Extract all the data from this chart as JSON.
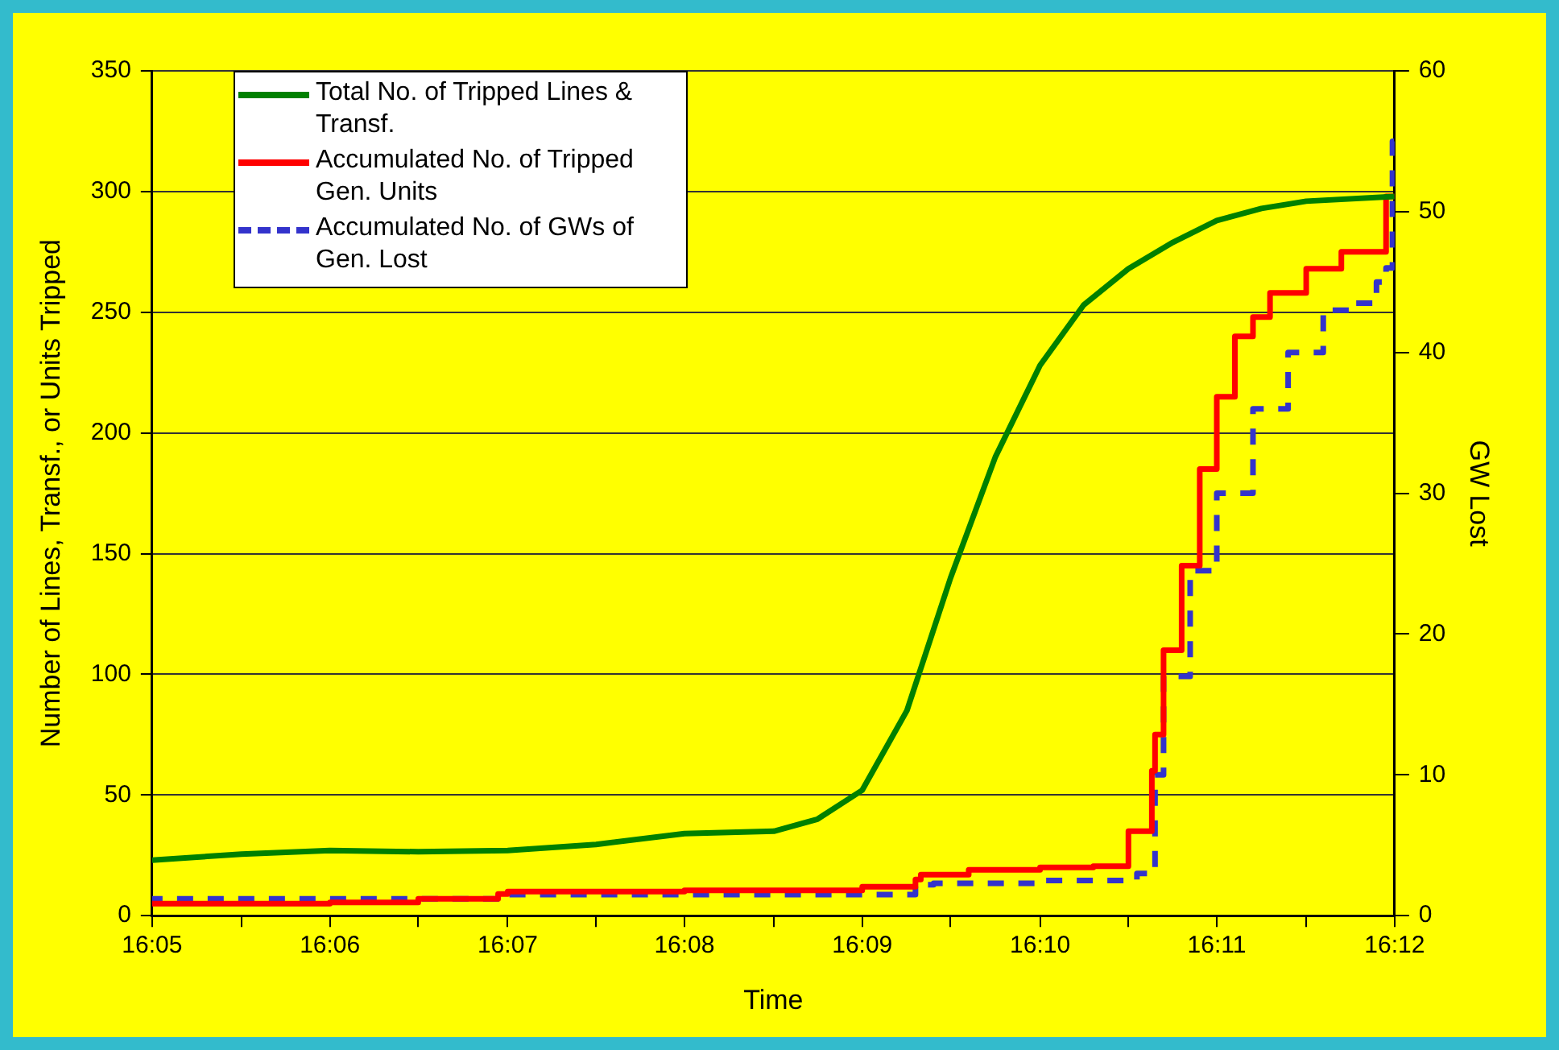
{
  "chart_data": {
    "type": "line",
    "xlabel": "Time",
    "ylabel": "Number of Lines, Transf., or Units Tripped",
    "y2label": "GW Lost",
    "xlim": [
      16.0833,
      16.2
    ],
    "xticks": [
      {
        "value": 16.0833,
        "label": "16:05"
      },
      {
        "value": 16.0917,
        "label": null
      },
      {
        "value": 16.1,
        "label": "16:06"
      },
      {
        "value": 16.1083,
        "label": null
      },
      {
        "value": 16.1167,
        "label": "16:07"
      },
      {
        "value": 16.125,
        "label": null
      },
      {
        "value": 16.1333,
        "label": "16:08"
      },
      {
        "value": 16.1417,
        "label": null
      },
      {
        "value": 16.15,
        "label": "16:09"
      },
      {
        "value": 16.1583,
        "label": null
      },
      {
        "value": 16.1667,
        "label": "16:10"
      },
      {
        "value": 16.175,
        "label": null
      },
      {
        "value": 16.1833,
        "label": "16:11"
      },
      {
        "value": 16.1917,
        "label": null
      },
      {
        "value": 16.2,
        "label": "16:12"
      }
    ],
    "ylim": [
      0,
      350
    ],
    "yticks": [
      0,
      50,
      100,
      150,
      200,
      250,
      300,
      350
    ],
    "y2lim": [
      0,
      60
    ],
    "y2ticks": [
      0,
      10,
      20,
      30,
      40,
      50,
      60
    ],
    "grid": "y",
    "legend": "top left",
    "marker": "none",
    "series": [
      {
        "name": "Total No. of Tripped Lines & Transf.",
        "color": "#008000",
        "type": "line",
        "line_style": "solid",
        "x": [
          16.0833,
          16.0917,
          16.1,
          16.1083,
          16.1167,
          16.125,
          16.1333,
          16.1417,
          16.1458,
          16.15,
          16.1542,
          16.1583,
          16.1625,
          16.1667,
          16.1708,
          16.175,
          16.1792,
          16.1833,
          16.1875,
          16.1917,
          16.2
        ],
        "values": [
          23,
          25.5,
          27,
          26.5,
          27,
          29.5,
          34,
          35,
          40,
          52,
          85,
          140,
          190,
          228,
          253,
          268,
          279,
          288,
          293,
          296,
          298
        ]
      },
      {
        "name": "Accumulated No. of Tripped Gen. Units",
        "color": "#ff0000",
        "type": "step",
        "line_style": "solid",
        "x": [
          16.0833,
          16.1,
          16.1083,
          16.1158,
          16.1167,
          16.1333,
          16.15,
          16.155,
          16.1555,
          16.16,
          16.1667,
          16.1717,
          16.175,
          16.1772,
          16.1775,
          16.1783,
          16.18,
          16.1817,
          16.1833,
          16.185,
          16.1867,
          16.1883,
          16.1917,
          16.195,
          16.1992,
          16.2
        ],
        "values": [
          5,
          5,
          5.5,
          7,
          9,
          10,
          10.5,
          12,
          15,
          17,
          19,
          20,
          20.5,
          35,
          60,
          75,
          110,
          145,
          185,
          215,
          240,
          248,
          258,
          268,
          275,
          298
        ]
      },
      {
        "name": "Accumulated No. of GWs of Gen. Lost",
        "color": "#3333cc",
        "type": "step",
        "axis": "y2",
        "line_style": "dashed",
        "x": [
          16.0833,
          16.1167,
          16.155,
          16.1567,
          16.1667,
          16.1758,
          16.1775,
          16.1783,
          16.1808,
          16.1833,
          16.1867,
          16.19,
          16.1933,
          16.1958,
          16.1983,
          16.1992,
          16.1998,
          16.2
        ],
        "values": [
          0.8,
          1.2,
          1.5,
          2.2,
          2.3,
          2.5,
          3,
          10,
          17,
          24.5,
          30,
          36,
          40,
          43,
          43.5,
          45,
          46,
          55
        ]
      }
    ]
  }
}
